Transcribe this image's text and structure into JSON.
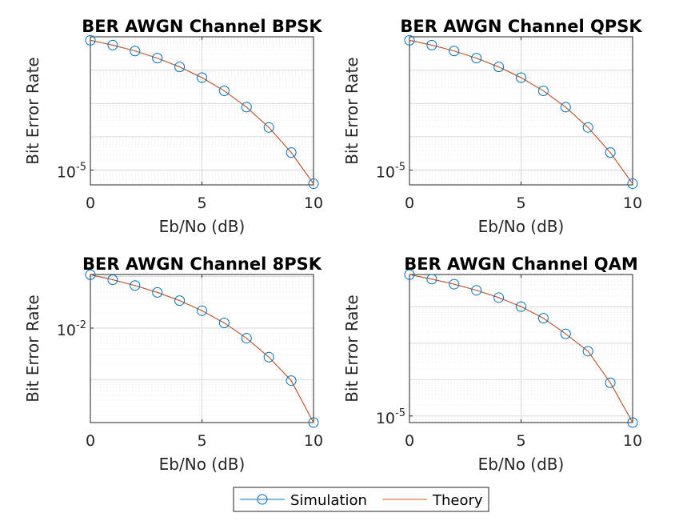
{
  "legend": {
    "entries": [
      "Simulation",
      "Theory"
    ]
  },
  "colors": {
    "simulation": "#0072bd",
    "theory": "#d95319",
    "grid": "#d9d9d9",
    "axis": "#262626"
  },
  "chart_data": [
    {
      "type": "line",
      "title": "BER AWGN Channel BPSK",
      "xlabel": "Eb/No (dB)",
      "ylabel": "Bit Error Rate",
      "yscale": "log",
      "xlim": [
        0,
        10
      ],
      "ylim": [
        3.6e-06,
        0.1
      ],
      "xticks": [
        0,
        5,
        10
      ],
      "yticks": [
        {
          "base": "10",
          "exp": "-5",
          "value": 1e-05
        }
      ],
      "grid": true,
      "x": [
        0,
        1,
        2,
        3,
        4,
        5,
        6,
        7,
        8,
        9,
        10
      ],
      "series": [
        {
          "name": "Simulation",
          "values": [
            0.0786,
            0.0563,
            0.0375,
            0.0229,
            0.0125,
            0.00595,
            0.00239,
            0.000773,
            0.000191,
            3.36e-05,
            3.9e-06
          ]
        },
        {
          "name": "Theory",
          "values": [
            0.0786,
            0.0563,
            0.0375,
            0.0229,
            0.0125,
            0.00595,
            0.00239,
            0.000773,
            0.000191,
            3.36e-05,
            3.9e-06
          ]
        }
      ]
    },
    {
      "type": "line",
      "title": "BER AWGN Channel QPSK",
      "xlabel": "Eb/No (dB)",
      "ylabel": "Bit Error Rate",
      "yscale": "log",
      "xlim": [
        0,
        10
      ],
      "ylim": [
        3.6e-06,
        0.1
      ],
      "xticks": [
        0,
        5,
        10
      ],
      "yticks": [
        {
          "base": "10",
          "exp": "-5",
          "value": 1e-05
        }
      ],
      "grid": true,
      "x": [
        0,
        1,
        2,
        3,
        4,
        5,
        6,
        7,
        8,
        9,
        10
      ],
      "series": [
        {
          "name": "Simulation",
          "values": [
            0.0786,
            0.0563,
            0.0375,
            0.0229,
            0.0125,
            0.00595,
            0.00239,
            0.000773,
            0.000191,
            3.36e-05,
            3.9e-06
          ]
        },
        {
          "name": "Theory",
          "values": [
            0.0786,
            0.0563,
            0.0375,
            0.0229,
            0.0125,
            0.00595,
            0.00239,
            0.000773,
            0.000191,
            3.36e-05,
            3.9e-06
          ]
        }
      ]
    },
    {
      "type": "line",
      "title": "BER AWGN Channel 8PSK",
      "xlabel": "Eb/No (dB)",
      "ylabel": "Bit Error Rate",
      "yscale": "log",
      "xlim": [
        0,
        10
      ],
      "ylim": [
        0.000146,
        0.11
      ],
      "xticks": [
        0,
        5,
        10
      ],
      "yticks": [
        {
          "base": "10",
          "exp": "-2",
          "value": 0.01
        }
      ],
      "grid": true,
      "x": [
        0,
        1,
        2,
        3,
        4,
        5,
        6,
        7,
        8,
        9,
        10
      ],
      "series": [
        {
          "name": "Simulation",
          "values": [
            0.109,
            0.0871,
            0.0672,
            0.0494,
            0.0342,
            0.0218,
            0.0126,
            0.00637,
            0.00273,
            0.000954,
            0.000146
          ]
        },
        {
          "name": "Theory",
          "values": [
            0.109,
            0.0871,
            0.0672,
            0.0494,
            0.0342,
            0.0218,
            0.0126,
            0.00637,
            0.00273,
            0.000954,
            0.000146
          ]
        }
      ]
    },
    {
      "type": "line",
      "title": "BER AWGN Channel QAM",
      "xlabel": "Eb/No (dB)",
      "ylabel": "Bit Error Rate",
      "yscale": "log",
      "xlim": [
        0,
        10
      ],
      "ylim": [
        6.6e-06,
        0.077
      ],
      "xticks": [
        0,
        5,
        10
      ],
      "yticks": [
        {
          "base": "10",
          "exp": "-5",
          "value": 1e-05
        }
      ],
      "grid": true,
      "x": [
        0,
        1,
        2,
        3,
        4,
        5,
        6,
        7,
        8,
        9,
        10
      ],
      "series": [
        {
          "name": "Simulation",
          "values": [
            0.0765,
            0.0575,
            0.0418,
            0.0284,
            0.0178,
            0.0101,
            0.00485,
            0.00181,
            0.000602,
            8.19e-05,
            6.6e-06
          ]
        },
        {
          "name": "Theory",
          "values": [
            0.0765,
            0.0575,
            0.0418,
            0.0284,
            0.0178,
            0.0101,
            0.00485,
            0.00181,
            0.000602,
            8.19e-05,
            6.6e-06
          ]
        }
      ]
    }
  ]
}
